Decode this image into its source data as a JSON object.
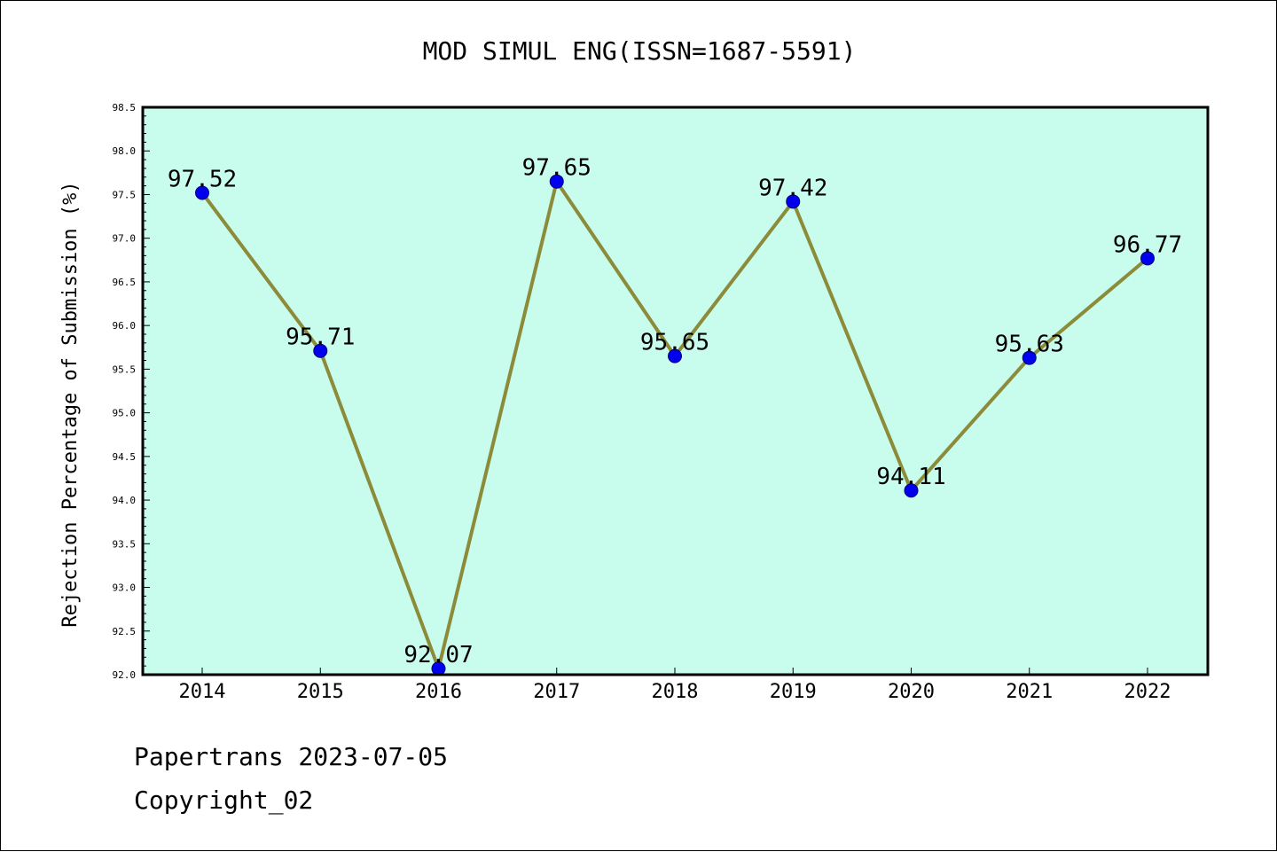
{
  "chart_data": {
    "type": "line",
    "title": "MOD SIMUL ENG(ISSN=1687-5591)",
    "xlabel": "",
    "ylabel": "Rejection Percentage of Submission (%)",
    "categories": [
      "2014",
      "2015",
      "2016",
      "2017",
      "2018",
      "2019",
      "2020",
      "2021",
      "2022"
    ],
    "series": [
      {
        "values": [
          97.52,
          95.71,
          92.07,
          97.65,
          95.65,
          97.42,
          94.11,
          95.63,
          96.77
        ],
        "data_labels": [
          "97.52",
          "95.71",
          "92.07",
          "97.65",
          "95.65",
          "97.42",
          "94.11",
          "95.63",
          "96.77"
        ]
      }
    ],
    "ylim": [
      92.0,
      98.5
    ],
    "yticks": [
      "92.0",
      "92.5",
      "93.0",
      "93.5",
      "94.0",
      "94.5",
      "95.0",
      "95.5",
      "96.0",
      "96.5",
      "97.0",
      "97.5",
      "98.0",
      "98.5"
    ],
    "grid": false,
    "legend": "none",
    "colors": {
      "plot_background": "#c8fcec",
      "line": "#8b8b3a",
      "marker": "#0000ee",
      "marker_edge": "#00007a"
    }
  },
  "footer": {
    "source": "Papertrans 2023-07-05",
    "copyright": "Copyright_02"
  }
}
